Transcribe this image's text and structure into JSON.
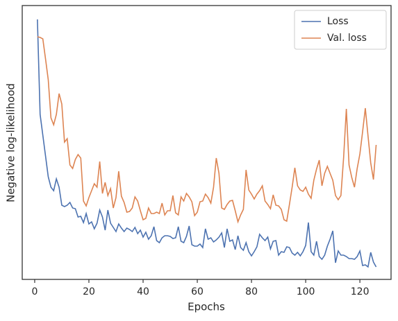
{
  "chart_data": {
    "type": "line",
    "xlabel": "Epochs",
    "ylabel": "Negative log-likelihood",
    "x": [
      1,
      2,
      3,
      4,
      5,
      6,
      7,
      8,
      9,
      10,
      11,
      12,
      13,
      14,
      15,
      16,
      17,
      18,
      19,
      20,
      21,
      22,
      23,
      24,
      25,
      26,
      27,
      28,
      29,
      30,
      31,
      32,
      33,
      34,
      35,
      36,
      37,
      38,
      39,
      40,
      41,
      42,
      43,
      44,
      45,
      46,
      47,
      48,
      49,
      50,
      51,
      52,
      53,
      54,
      55,
      56,
      57,
      58,
      59,
      60,
      61,
      62,
      63,
      64,
      65,
      66,
      67,
      68,
      69,
      70,
      71,
      72,
      73,
      74,
      75,
      76,
      77,
      78,
      79,
      80,
      81,
      82,
      83,
      84,
      85,
      86,
      87,
      88,
      89,
      90,
      91,
      92,
      93,
      94,
      95,
      96,
      97,
      98,
      99,
      100,
      101,
      102,
      103,
      104,
      105,
      106,
      107,
      108,
      109,
      110,
      111,
      112,
      113,
      114,
      115,
      116,
      117,
      118,
      119,
      120,
      121,
      122,
      123,
      124,
      125,
      126
    ],
    "series": [
      {
        "name": "Loss",
        "color": "#4c72b0",
        "values": [
          375,
          238,
          208,
          178,
          148,
          133,
          128,
          145,
          133,
          107,
          105,
          107,
          111,
          103,
          102,
          90,
          91,
          82,
          95,
          80,
          83,
          73,
          81,
          100,
          90,
          71,
          100,
          81,
          75,
          69,
          80,
          74,
          69,
          74,
          72,
          69,
          75,
          66,
          71,
          61,
          68,
          58,
          63,
          76,
          56,
          53,
          60,
          63,
          63,
          62,
          59,
          60,
          76,
          55,
          53,
          62,
          77,
          50,
          48,
          48,
          51,
          46,
          73,
          58,
          60,
          54,
          57,
          61,
          67,
          46,
          73,
          55,
          57,
          43,
          63,
          46,
          42,
          53,
          40,
          34,
          40,
          47,
          65,
          60,
          56,
          61,
          44,
          55,
          56,
          35,
          40,
          39,
          47,
          46,
          38,
          35,
          39,
          34,
          40,
          49,
          82,
          40,
          35,
          55,
          33,
          29,
          35,
          48,
          58,
          70,
          24,
          41,
          35,
          35,
          33,
          30,
          30,
          29,
          33,
          41,
          20,
          21,
          18,
          39,
          25,
          18
        ]
      },
      {
        "name": "Val. loss",
        "color": "#dd8452",
        "values": [
          350,
          349,
          347,
          318,
          288,
          233,
          223,
          238,
          268,
          253,
          198,
          203,
          165,
          160,
          173,
          180,
          175,
          113,
          106,
          118,
          128,
          138,
          133,
          170,
          124,
          140,
          121,
          131,
          103,
          118,
          156,
          120,
          111,
          97,
          98,
          103,
          119,
          113,
          99,
          86,
          88,
          103,
          95,
          95,
          97,
          95,
          110,
          93,
          99,
          99,
          121,
          96,
          93,
          119,
          113,
          124,
          119,
          112,
          92,
          97,
          112,
          113,
          123,
          118,
          110,
          133,
          175,
          153,
          103,
          101,
          108,
          113,
          114,
          99,
          83,
          93,
          101,
          158,
          129,
          123,
          116,
          123,
          128,
          135,
          113,
          108,
          102,
          122,
          107,
          106,
          101,
          86,
          84,
          108,
          133,
          161,
          135,
          129,
          127,
          133,
          123,
          117,
          143,
          159,
          172,
          135,
          153,
          163,
          153,
          143,
          121,
          115,
          121,
          176,
          246,
          165,
          147,
          133,
          160,
          181,
          213,
          247,
          207,
          168,
          144,
          194
        ]
      }
    ],
    "xlim": [
      -4.6,
      131.5
    ],
    "xticks": [
      0,
      20,
      40,
      60,
      80,
      100,
      120
    ],
    "ylim": [
      0,
      395
    ],
    "legend": "upper right"
  }
}
